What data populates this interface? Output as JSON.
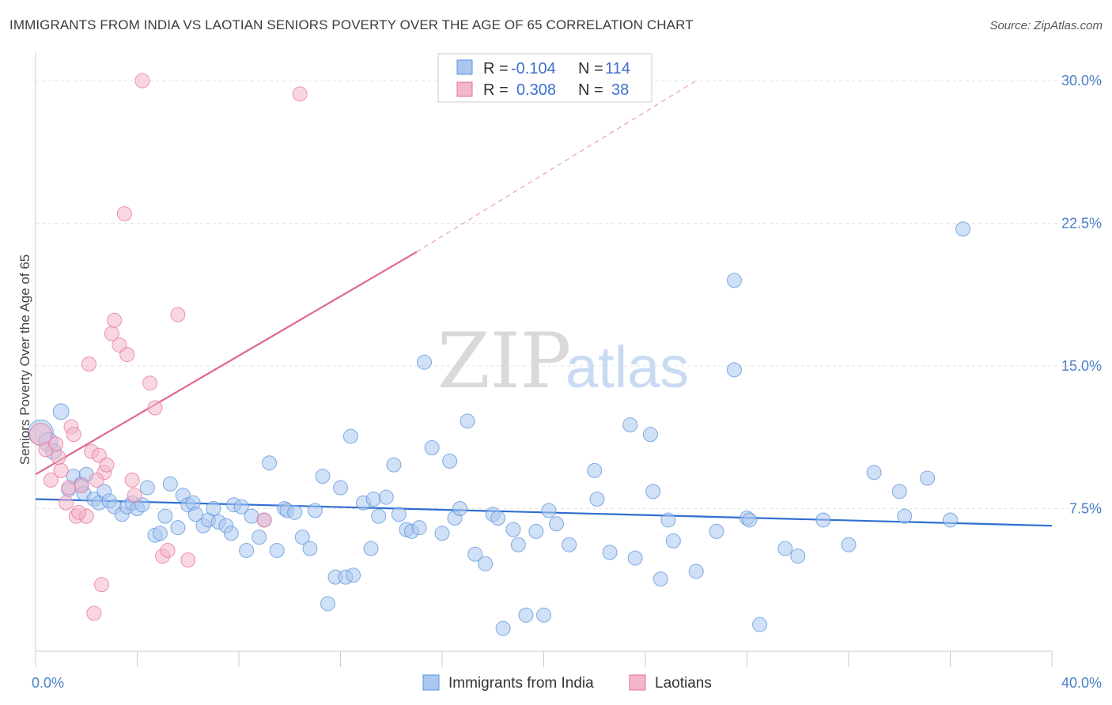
{
  "title": "IMMIGRANTS FROM INDIA VS LAOTIAN SENIORS POVERTY OVER THE AGE OF 65 CORRELATION CHART",
  "source": "Source: ZipAtlas.com",
  "watermark": {
    "zip": "ZIP",
    "atlas": "atlas"
  },
  "colors": {
    "blue": "#5b93dc",
    "blue_fill": "#a9c7ef",
    "pink": "#e8709a",
    "pink_fill": "#f4b6cb",
    "tick": "#4a7fc8"
  },
  "legend": {
    "rows": [
      {
        "r_label": "R =",
        "r_value": "-0.104",
        "n_label": "N =",
        "n_value": "114"
      },
      {
        "r_label": "R =",
        "r_value": "0.308",
        "n_label": "N =",
        "n_value": "38"
      }
    ]
  },
  "chart_data": {
    "type": "scatter",
    "ylabel": "Seniors Poverty Over the Age of 65",
    "xlim": [
      0,
      40
    ],
    "ylim": [
      0,
      31
    ],
    "x_tick_labels": [
      {
        "value": 0,
        "label": "0.0%"
      },
      {
        "value": 40,
        "label": "40.0%"
      }
    ],
    "y_tick_labels": [
      {
        "value": 7.5,
        "label": "7.5%"
      },
      {
        "value": 15,
        "label": "15.0%"
      },
      {
        "value": 22.5,
        "label": "22.5%"
      },
      {
        "value": 30,
        "label": "30.0%"
      }
    ],
    "legend_position": "top-center",
    "series": [
      {
        "name": "Immigrants from India",
        "color": "#5b93dc",
        "trend": {
          "x0": 0,
          "y0": 8.0,
          "x1": 40,
          "y1": 6.6
        },
        "points": [
          [
            0.2,
            11.5,
            16
          ],
          [
            0.5,
            11.0,
            12
          ],
          [
            0.7,
            10.5,
            10
          ],
          [
            1.0,
            12.6,
            10
          ],
          [
            1.3,
            8.5,
            9
          ],
          [
            1.5,
            9.2,
            9
          ],
          [
            1.8,
            8.8,
            9
          ],
          [
            1.9,
            8.3,
            9
          ],
          [
            2.0,
            9.3,
            9
          ],
          [
            2.3,
            8.0,
            9
          ],
          [
            2.5,
            7.8,
            9
          ],
          [
            2.7,
            8.4,
            9
          ],
          [
            2.9,
            7.9,
            9
          ],
          [
            3.1,
            7.6,
            9
          ],
          [
            3.4,
            7.2,
            9
          ],
          [
            3.6,
            7.6,
            9
          ],
          [
            3.8,
            7.8,
            9
          ],
          [
            4.0,
            7.5,
            9
          ],
          [
            4.2,
            7.7,
            9
          ],
          [
            4.4,
            8.6,
            9
          ],
          [
            4.7,
            6.1,
            9
          ],
          [
            4.9,
            6.2,
            9
          ],
          [
            5.1,
            7.1,
            9
          ],
          [
            5.3,
            8.8,
            9
          ],
          [
            5.6,
            6.5,
            9
          ],
          [
            5.8,
            8.2,
            9
          ],
          [
            6.0,
            7.7,
            9
          ],
          [
            6.2,
            7.8,
            9
          ],
          [
            6.3,
            7.2,
            9
          ],
          [
            6.6,
            6.6,
            9
          ],
          [
            6.8,
            6.9,
            9
          ],
          [
            7.0,
            7.5,
            9
          ],
          [
            7.2,
            6.8,
            9
          ],
          [
            7.5,
            6.6,
            9
          ],
          [
            7.7,
            6.2,
            9
          ],
          [
            7.8,
            7.7,
            9
          ],
          [
            8.1,
            7.6,
            9
          ],
          [
            8.3,
            5.3,
            9
          ],
          [
            8.5,
            7.1,
            9
          ],
          [
            8.8,
            6.0,
            9
          ],
          [
            9.0,
            6.9,
            9
          ],
          [
            9.2,
            9.9,
            9
          ],
          [
            9.5,
            5.3,
            9
          ],
          [
            9.8,
            7.5,
            9
          ],
          [
            9.9,
            7.4,
            9
          ],
          [
            10.2,
            7.3,
            9
          ],
          [
            10.5,
            6.0,
            9
          ],
          [
            10.8,
            5.4,
            9
          ],
          [
            11.0,
            7.4,
            9
          ],
          [
            11.3,
            9.2,
            9
          ],
          [
            11.5,
            2.5,
            9
          ],
          [
            11.8,
            3.9,
            9
          ],
          [
            12.0,
            8.6,
            9
          ],
          [
            12.2,
            3.9,
            9
          ],
          [
            12.4,
            11.3,
            9
          ],
          [
            12.5,
            4.0,
            9
          ],
          [
            12.9,
            7.8,
            9
          ],
          [
            13.2,
            5.4,
            9
          ],
          [
            13.3,
            8.0,
            9
          ],
          [
            13.5,
            7.1,
            9
          ],
          [
            13.8,
            8.1,
            9
          ],
          [
            14.1,
            9.8,
            9
          ],
          [
            14.3,
            7.2,
            9
          ],
          [
            14.6,
            6.4,
            9
          ],
          [
            14.8,
            6.3,
            9
          ],
          [
            15.1,
            6.5,
            9
          ],
          [
            15.3,
            15.2,
            9
          ],
          [
            15.6,
            10.7,
            9
          ],
          [
            16.0,
            6.2,
            9
          ],
          [
            16.3,
            10.0,
            9
          ],
          [
            16.5,
            7.0,
            9
          ],
          [
            16.7,
            7.5,
            9
          ],
          [
            17.0,
            12.1,
            9
          ],
          [
            17.3,
            5.1,
            9
          ],
          [
            17.7,
            4.6,
            9
          ],
          [
            18.0,
            7.2,
            9
          ],
          [
            18.2,
            7.0,
            9
          ],
          [
            18.4,
            1.2,
            9
          ],
          [
            18.8,
            6.4,
            9
          ],
          [
            19.0,
            5.6,
            9
          ],
          [
            19.3,
            1.9,
            9
          ],
          [
            19.7,
            6.3,
            9
          ],
          [
            20.0,
            1.9,
            9
          ],
          [
            20.2,
            7.4,
            9
          ],
          [
            20.5,
            6.7,
            9
          ],
          [
            21.0,
            5.6,
            9
          ],
          [
            22.0,
            9.5,
            9
          ],
          [
            22.1,
            8.0,
            9
          ],
          [
            22.6,
            5.2,
            9
          ],
          [
            23.4,
            11.9,
            9
          ],
          [
            23.6,
            4.9,
            9
          ],
          [
            24.2,
            11.4,
            9
          ],
          [
            24.3,
            8.4,
            9
          ],
          [
            24.6,
            3.8,
            9
          ],
          [
            24.9,
            6.9,
            9
          ],
          [
            25.1,
            5.8,
            9
          ],
          [
            26.0,
            4.2,
            9
          ],
          [
            26.8,
            6.3,
            9
          ],
          [
            27.5,
            19.5,
            9
          ],
          [
            27.5,
            14.8,
            9
          ],
          [
            28.0,
            7.0,
            9
          ],
          [
            28.1,
            6.9,
            9
          ],
          [
            28.5,
            1.4,
            9
          ],
          [
            29.5,
            5.4,
            9
          ],
          [
            30.0,
            5.0,
            9
          ],
          [
            31.0,
            6.9,
            9
          ],
          [
            32.0,
            5.6,
            9
          ],
          [
            33.0,
            9.4,
            9
          ],
          [
            34.0,
            8.4,
            9
          ],
          [
            34.2,
            7.1,
            9
          ],
          [
            35.1,
            9.1,
            9
          ],
          [
            36.0,
            6.9,
            9
          ],
          [
            36.5,
            22.2,
            9
          ]
        ]
      },
      {
        "name": "Laotians",
        "color": "#e8709a",
        "trend": {
          "x0": 0,
          "y0": 9.3,
          "x1": 15,
          "y1": 21.0,
          "dash_x1": 26,
          "dash_y1": 30.0
        },
        "points": [
          [
            0.2,
            11.4,
            14
          ],
          [
            0.4,
            10.6,
            9
          ],
          [
            0.6,
            9.0,
            9
          ],
          [
            0.8,
            10.9,
            9
          ],
          [
            1.0,
            9.5,
            9
          ],
          [
            1.2,
            7.8,
            9
          ],
          [
            1.4,
            11.8,
            9
          ],
          [
            1.5,
            11.4,
            9
          ],
          [
            1.6,
            7.1,
            9
          ],
          [
            1.8,
            8.7,
            9
          ],
          [
            2.0,
            7.1,
            9
          ],
          [
            2.1,
            15.1,
            9
          ],
          [
            2.2,
            10.5,
            9
          ],
          [
            2.3,
            2.0,
            9
          ],
          [
            2.5,
            10.3,
            9
          ],
          [
            2.6,
            3.5,
            9
          ],
          [
            2.7,
            9.4,
            9
          ],
          [
            2.8,
            9.8,
            9
          ],
          [
            3.0,
            16.7,
            9
          ],
          [
            3.1,
            17.4,
            9
          ],
          [
            3.3,
            16.1,
            9
          ],
          [
            3.5,
            23.0,
            9
          ],
          [
            3.6,
            15.6,
            9
          ],
          [
            3.8,
            9.0,
            9
          ],
          [
            3.9,
            8.2,
            9
          ],
          [
            4.2,
            30.0,
            9
          ],
          [
            4.5,
            14.1,
            9
          ],
          [
            4.7,
            12.8,
            9
          ],
          [
            5.0,
            5.0,
            9
          ],
          [
            5.2,
            5.3,
            9
          ],
          [
            5.6,
            17.7,
            9
          ],
          [
            6.0,
            4.8,
            9
          ],
          [
            9.0,
            6.9,
            9
          ],
          [
            10.4,
            29.3,
            9
          ],
          [
            1.3,
            8.6,
            9
          ],
          [
            0.9,
            10.2,
            9
          ],
          [
            2.4,
            9.0,
            9
          ],
          [
            1.7,
            7.3,
            9
          ]
        ]
      }
    ]
  },
  "bottom_legend": [
    {
      "label": "Immigrants from India"
    },
    {
      "label": "Laotians"
    }
  ]
}
